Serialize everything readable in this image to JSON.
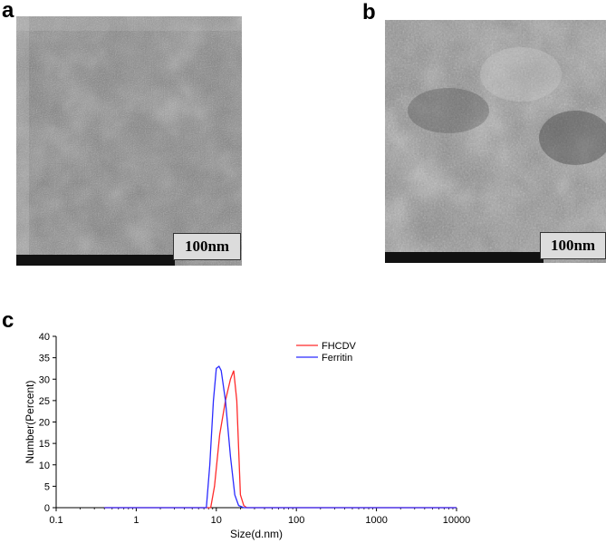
{
  "panels": {
    "a": {
      "letter": "a",
      "scale_label": "100nm"
    },
    "b": {
      "letter": "b",
      "scale_label": "100nm"
    },
    "c": {
      "letter": "c"
    }
  },
  "colors": {
    "fhcdv": "#ff2b2b",
    "ferritin": "#2b2bff"
  },
  "chart_data": {
    "type": "line",
    "xlabel": "Size(d.nm)",
    "ylabel": "Number(Percent)",
    "xscale": "log",
    "xlim": [
      0.1,
      10000
    ],
    "ylim": [
      0,
      40
    ],
    "xticks": [
      0.1,
      1,
      10,
      100,
      1000,
      10000
    ],
    "xtick_labels": [
      "0.1",
      "1",
      "10",
      "100",
      "1000",
      "10000"
    ],
    "yticks": [
      0,
      5,
      10,
      15,
      20,
      25,
      30,
      35,
      40
    ],
    "legend_position": "top-right",
    "series": [
      {
        "name": "FHCDV",
        "color": "#ff2b2b",
        "x": [
          0.4,
          1,
          5,
          7.8,
          8.5,
          9.5,
          11,
          13,
          15,
          16.5,
          18,
          20,
          22,
          24,
          30,
          100,
          1000,
          10000
        ],
        "y": [
          0,
          0,
          0,
          0,
          0,
          5,
          17,
          25,
          30,
          32,
          25,
          3,
          0.5,
          0,
          0,
          0,
          0,
          0
        ]
      },
      {
        "name": "Ferritin",
        "color": "#2b2bff",
        "x": [
          0.4,
          1,
          5,
          7.5,
          8.3,
          9.2,
          10,
          10.8,
          11.5,
          13,
          15,
          17,
          19,
          22,
          30,
          100,
          1000,
          10000
        ],
        "y": [
          0,
          0,
          0,
          0,
          10,
          25,
          32.5,
          33,
          32,
          25,
          12,
          3,
          0.5,
          0,
          0,
          0,
          0,
          0
        ]
      }
    ]
  }
}
